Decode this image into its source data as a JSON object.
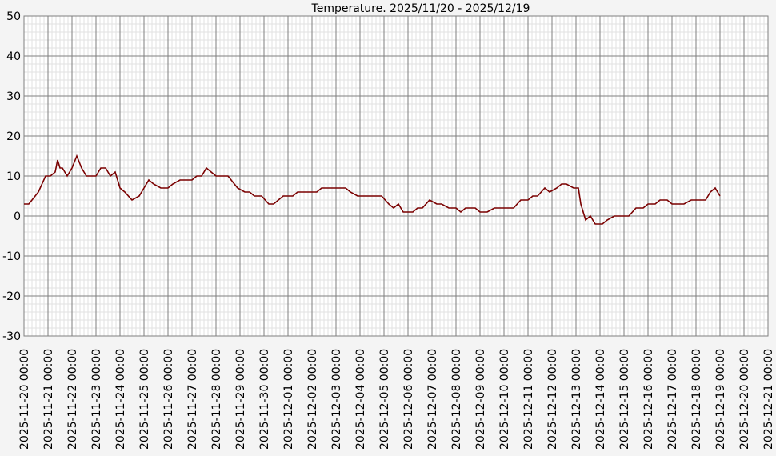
{
  "chart_data": {
    "type": "line",
    "title": "Temperature. 2025/11/20 - 2025/12/19",
    "xlabel": "",
    "ylabel": "",
    "ylim": [
      -30,
      50
    ],
    "yticks": [
      "50",
      "40",
      "30",
      "20",
      "10",
      "0",
      "-10",
      "-20",
      "-30"
    ],
    "xlim": [
      "2025-11-20 00:00",
      "2025-12-21 00:00"
    ],
    "xticks": [
      "2025-11-20 00:00",
      "2025-11-21 00:00",
      "2025-11-22 00:00",
      "2025-11-23 00:00",
      "2025-11-24 00:00",
      "2025-11-25 00:00",
      "2025-11-26 00:00",
      "2025-11-27 00:00",
      "2025-11-28 00:00",
      "2025-11-29 00:00",
      "2025-11-30 00:00",
      "2025-12-01 00:00",
      "2025-12-02 00:00",
      "2025-12-03 00:00",
      "2025-12-04 00:00",
      "2025-12-05 00:00",
      "2025-12-06 00:00",
      "2025-12-07 00:00",
      "2025-12-08 00:00",
      "2025-12-09 00:00",
      "2025-12-10 00:00",
      "2025-12-11 00:00",
      "2025-12-12 00:00",
      "2025-12-13 00:00",
      "2025-12-14 00:00",
      "2025-12-15 00:00",
      "2025-12-16 00:00",
      "2025-12-17 00:00",
      "2025-12-18 00:00",
      "2025-12-19 00:00",
      "2025-12-20 00:00",
      "2025-12-21 00:00"
    ],
    "grid": true,
    "line_color": "#7a0000",
    "series": [
      {
        "x": [
          "2025-11-20 00:00",
          "2025-11-20 04:48",
          "2025-11-20 14:24",
          "2025-11-20 21:36",
          "2025-11-21 02:24",
          "2025-11-21 07:12",
          "2025-11-21 09:36",
          "2025-11-21 12:00",
          "2025-11-21 14:24",
          "2025-11-21 19:12",
          "2025-11-22 00:00",
          "2025-11-22 04:48",
          "2025-11-22 09:36",
          "2025-11-22 14:24",
          "2025-11-22 19:12",
          "2025-11-23 00:00",
          "2025-11-23 04:48",
          "2025-11-23 09:36",
          "2025-11-23 14:24",
          "2025-11-23 19:12",
          "2025-11-24 00:00",
          "2025-11-24 04:48",
          "2025-11-24 12:00",
          "2025-11-24 19:12",
          "2025-11-25 00:00",
          "2025-11-25 04:48",
          "2025-11-25 09:36",
          "2025-11-25 16:48",
          "2025-11-26 00:00",
          "2025-11-26 04:48",
          "2025-11-26 12:00",
          "2025-11-26 19:12",
          "2025-11-27 00:00",
          "2025-11-27 04:48",
          "2025-11-27 09:36",
          "2025-11-27 14:24",
          "2025-11-27 19:12",
          "2025-11-28 00:00",
          "2025-11-28 12:00",
          "2025-11-28 21:36",
          "2025-11-29 04:48",
          "2025-11-29 09:36",
          "2025-11-29 14:24",
          "2025-11-29 21:36",
          "2025-11-30 04:48",
          "2025-11-30 09:36",
          "2025-11-30 19:12",
          "2025-12-01 04:48",
          "2025-12-01 09:36",
          "2025-12-01 19:12",
          "2025-12-02 04:48",
          "2025-12-02 09:36",
          "2025-12-02 19:12",
          "2025-12-03 04:48",
          "2025-12-03 09:36",
          "2025-12-03 14:24",
          "2025-12-03 21:36",
          "2025-12-04 04:48",
          "2025-12-04 12:00",
          "2025-12-04 21:36",
          "2025-12-05 04:48",
          "2025-12-05 09:36",
          "2025-12-05 14:24",
          "2025-12-05 19:12",
          "2025-12-06 00:00",
          "2025-12-06 04:48",
          "2025-12-06 09:36",
          "2025-12-06 14:24",
          "2025-12-06 21:36",
          "2025-12-07 04:48",
          "2025-12-07 09:36",
          "2025-12-07 16:48",
          "2025-12-08 00:00",
          "2025-12-08 04:48",
          "2025-12-08 09:36",
          "2025-12-08 19:12",
          "2025-12-09 00:00",
          "2025-12-09 07:12",
          "2025-12-09 14:24",
          "2025-12-09 21:36",
          "2025-12-10 04:48",
          "2025-12-10 09:36",
          "2025-12-10 16:48",
          "2025-12-11 00:00",
          "2025-12-11 04:48",
          "2025-12-11 09:36",
          "2025-12-11 16:48",
          "2025-12-11 21:36",
          "2025-12-12 04:48",
          "2025-12-12 09:36",
          "2025-12-12 14:24",
          "2025-12-12 21:36",
          "2025-12-13 02:24",
          "2025-12-13 04:48",
          "2025-12-13 07:12",
          "2025-12-13 09:36",
          "2025-12-13 14:24",
          "2025-12-13 19:12",
          "2025-12-14 02:24",
          "2025-12-14 07:12",
          "2025-12-14 14:24",
          "2025-12-14 21:36",
          "2025-12-15 04:48",
          "2025-12-15 12:00",
          "2025-12-15 19:12",
          "2025-12-16 00:00",
          "2025-12-16 07:12",
          "2025-12-16 12:00",
          "2025-12-16 19:12",
          "2025-12-17 00:00",
          "2025-12-17 04:48",
          "2025-12-17 12:00",
          "2025-12-17 19:12",
          "2025-12-18 00:00",
          "2025-12-18 09:36",
          "2025-12-18 14:24",
          "2025-12-18 19:12",
          "2025-12-19 00:00"
        ],
        "values": [
          3,
          3,
          6,
          10,
          10,
          11,
          14,
          12,
          12,
          10,
          12,
          15,
          12,
          10,
          10,
          10,
          12,
          12,
          10,
          11,
          7,
          6,
          4,
          5,
          7,
          9,
          8,
          7,
          7,
          8,
          9,
          9,
          9,
          10,
          10,
          12,
          11,
          10,
          10,
          7,
          6,
          6,
          5,
          5,
          3,
          3,
          5,
          5,
          6,
          6,
          6,
          7,
          7,
          7,
          7,
          6,
          5,
          5,
          5,
          5,
          3,
          2,
          3,
          1,
          1,
          1,
          2,
          2,
          4,
          3,
          3,
          2,
          2,
          1,
          2,
          2,
          1,
          1,
          2,
          2,
          2,
          2,
          4,
          4,
          5,
          5,
          7,
          6,
          7,
          8,
          8,
          7,
          7,
          3,
          1,
          -1,
          0,
          -2,
          -2,
          -1,
          0,
          0,
          0,
          2,
          2,
          3,
          3,
          4,
          4,
          3,
          3,
          3,
          4,
          4,
          4,
          6,
          7,
          5
        ]
      }
    ]
  }
}
